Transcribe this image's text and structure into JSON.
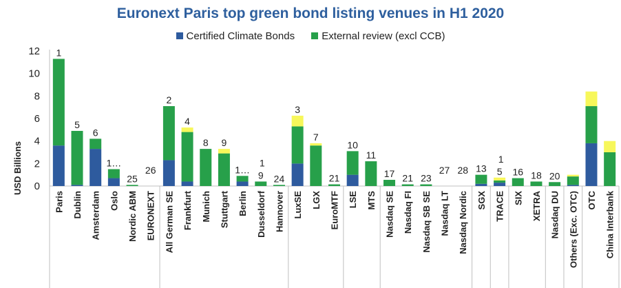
{
  "chart_data": {
    "type": "bar",
    "stacked": true,
    "title": "Euronext Paris top green bond listing venues in H1 2020",
    "ylabel": "USD Billions",
    "xlabel": "",
    "ylim": [
      0,
      12
    ],
    "yticks": [
      0,
      2,
      4,
      6,
      8,
      10,
      12
    ],
    "legend_position": "top",
    "categories": [
      "Paris",
      "Dublin",
      "Amsterdam",
      "Oslo",
      "Nordic ABM",
      "EURONEXT",
      "All German SE",
      "Frankfurt",
      "Munich",
      "Stuttgart",
      "Berlin",
      "Dusseldorf",
      "Hannover",
      "LuxSE",
      "LGX",
      "EuroMTF",
      "LSE",
      "MTS",
      "Nasdaq SE",
      "Nasdaq FI",
      "Nasdaq SB SE",
      "Nasdaq LT",
      "Nasdaq Nordic",
      "SGX",
      "TRACE",
      "SIX",
      "XETRA",
      "Nasdaq DU",
      "Others (Exc. OTC)",
      "OTC",
      "China Interbank"
    ],
    "groups": [
      {
        "start": 0,
        "end": 5
      },
      {
        "start": 6,
        "end": 12
      },
      {
        "start": 13,
        "end": 15
      },
      {
        "start": 16,
        "end": 17
      },
      {
        "start": 18,
        "end": 22
      },
      {
        "start": 23,
        "end": 23
      },
      {
        "start": 24,
        "end": 24
      },
      {
        "start": 25,
        "end": 26
      },
      {
        "start": 27,
        "end": 27
      },
      {
        "start": 28,
        "end": 28
      },
      {
        "start": 29,
        "end": 30
      }
    ],
    "series": [
      {
        "name": "Certified Climate Bonds",
        "color": "#2e5b9e",
        "values": [
          3.6,
          0.1,
          3.3,
          0.7,
          0,
          0,
          2.3,
          0.4,
          0,
          0,
          0.4,
          0,
          0,
          2.0,
          0,
          0,
          1.0,
          0,
          0,
          0,
          0,
          0,
          0,
          0.2,
          0.3,
          0,
          0,
          0,
          0.1,
          3.8,
          0
        ]
      },
      {
        "name": "External review (excl CCB)",
        "color": "#27a04a",
        "values": [
          7.7,
          4.8,
          0.9,
          0.8,
          0.1,
          0,
          4.8,
          4.4,
          3.3,
          2.9,
          0.5,
          0.4,
          0.1,
          3.3,
          3.6,
          0.15,
          2.1,
          2.2,
          0.55,
          0.15,
          0.15,
          0,
          0,
          0.8,
          0.2,
          0.7,
          0.4,
          0.35,
          0.75,
          3.3,
          3.0
        ]
      },
      {
        "name": "",
        "color": "#f7f75a",
        "values": [
          0,
          0,
          0,
          0,
          0,
          0,
          0,
          0.4,
          0,
          0.4,
          0,
          0,
          0,
          0.95,
          0.2,
          0,
          0,
          0,
          0,
          0,
          0,
          0,
          0,
          0,
          0.25,
          0,
          0,
          0,
          0.15,
          1.3,
          1.0
        ]
      }
    ],
    "data_labels": [
      "1",
      "5",
      "6",
      "1…",
      "25",
      "26",
      "2",
      "4",
      "8",
      "9",
      "1…",
      "9",
      "24",
      "3",
      "7",
      "21",
      "10",
      "11",
      "17",
      "21",
      "23",
      "27",
      "28",
      "13",
      "5",
      "16",
      "18",
      "20",
      "",
      "",
      ""
    ],
    "extra_labels": [
      {
        "index": 11,
        "text": "1"
      },
      {
        "index": 24,
        "text": "1"
      }
    ]
  }
}
